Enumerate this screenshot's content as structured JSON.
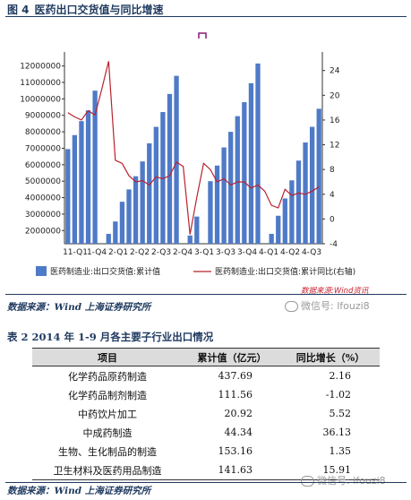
{
  "figure": {
    "label": "图 4",
    "title": "医药出口交货值与同比增速",
    "source": "数据来源：Wind 上海证券研究所",
    "wind_mark": "数据来源:Wind资讯",
    "watermark": "微信号: lfouzi8"
  },
  "chart_data": {
    "type": "bar",
    "series": [
      {
        "name": "医药制造业:出口交货值:累计值",
        "type": "bar",
        "color": "#4f7ac7",
        "values": [
          6950000,
          7800000,
          8650000,
          9300000,
          10500000,
          null,
          1800000,
          2550000,
          3750000,
          4500000,
          5300000,
          6200000,
          7300000,
          8300000,
          9200000,
          10300000,
          11400000,
          null,
          1700000,
          2850000,
          null,
          5000000,
          5950000,
          7050000,
          8000000,
          8950000,
          9800000,
          10950000,
          12150000,
          null,
          1800000,
          2900000,
          3950000,
          5050000,
          6250000,
          7350000,
          8300000,
          9400000
        ]
      },
      {
        "name": "医药制造业:出口交货值:累计同比(右轴)",
        "type": "line",
        "color": "#b8222e",
        "axis": "right",
        "values": [
          17.2,
          16.5,
          16.0,
          17.5,
          16.8,
          21.0,
          25.5,
          9.5,
          9.0,
          7.0,
          6.0,
          6.2,
          5.5,
          6.8,
          6.5,
          7.0,
          9.2,
          8.5,
          -2.5,
          3.5,
          9.0,
          8.0,
          6.0,
          6.5,
          5.5,
          6.0,
          6.0,
          5.0,
          5.5,
          4.5,
          2.2,
          1.8,
          4.8,
          3.8,
          4.2,
          4.0,
          4.5,
          5.2
        ]
      }
    ],
    "x_tick_labels": [
      "11-Q1",
      "11-Q4",
      "12-Q1",
      "12-Q2",
      "12-Q3",
      "12-Q4",
      "13-Q1",
      "13-Q3",
      "13-Q4",
      "14-Q1",
      "14-Q2",
      "14-Q3"
    ],
    "x_tick_labels_raw": [
      "11-Q1",
      "1-Q4",
      "2-Q1",
      "2-Q2",
      "2-Q3",
      "2-Q4",
      "3-Q1",
      "3-Q3",
      "3-Q4",
      "4-Q1",
      "4-Q2",
      "4-Q3"
    ],
    "y_left_ticks": [
      2000000,
      3000000,
      4000000,
      5000000,
      6000000,
      7000000,
      8000000,
      9000000,
      10000000,
      11000000,
      12000000
    ],
    "y_left_tick_labels": [
      "2000000",
      "3000000",
      "4000000",
      "5000000",
      "6000000",
      "7000000",
      "8000000",
      "9000000",
      "10000000",
      "11000000",
      "12000000"
    ],
    "y_right_ticks": [
      -4,
      0,
      4,
      8,
      12,
      16,
      20,
      24
    ],
    "y_right_tick_labels": [
      "-4",
      "0",
      "4",
      "8",
      "12",
      "16",
      "20",
      "24"
    ],
    "ylim_left": [
      1200000,
      12850000
    ],
    "ylim_right": [
      -4,
      27
    ],
    "legend_position": "bottom",
    "grid": false
  },
  "table": {
    "title": "表 2 2014 年 1-9 月各主要子行业出口情况",
    "headers": [
      "项目",
      "累计值（亿元）",
      "同比增长（%）"
    ],
    "rows": [
      [
        "化学药品原药制造",
        "437.69",
        "2.16"
      ],
      [
        "化学药品制剂制造",
        "111.56",
        "-1.02"
      ],
      [
        "中药饮片加工",
        "20.92",
        "5.52"
      ],
      [
        "中成药制造",
        "44.34",
        "36.13"
      ],
      [
        "生物、生化制品的制造",
        "153.16",
        "1.35"
      ],
      [
        "卫生材料及医药用品制造",
        "141.63",
        "15.91"
      ]
    ],
    "source": "数据来源：Wind 上海证券研究所"
  }
}
